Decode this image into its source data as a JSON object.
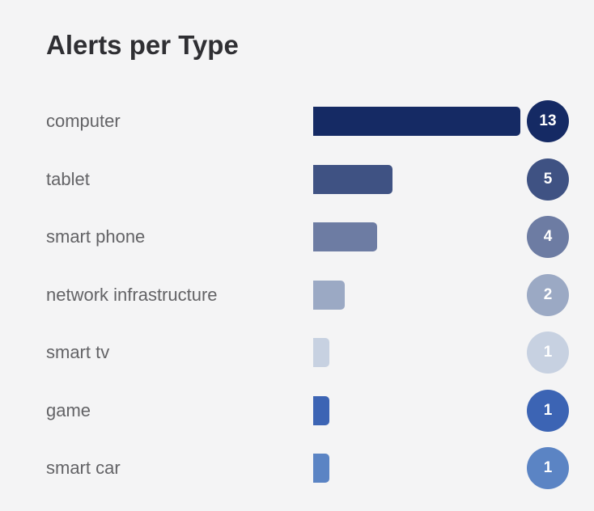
{
  "title": "Alerts per Type",
  "chart_data": {
    "type": "bar",
    "orientation": "horizontal",
    "title": "Alerts per Type",
    "xlabel": "",
    "ylabel": "",
    "grid": false,
    "xlim": [
      0,
      13
    ],
    "categories": [
      "computer",
      "tablet",
      "smart phone",
      "network infrastructure",
      "smart tv",
      "game",
      "smart car"
    ],
    "values": [
      13,
      5,
      4,
      2,
      1,
      1,
      1
    ],
    "colors": [
      "#152a64",
      "#3f5283",
      "#6d7ca3",
      "#9ba9c4",
      "#c7d1e1",
      "#3c64b4",
      "#5b84c4"
    ]
  }
}
